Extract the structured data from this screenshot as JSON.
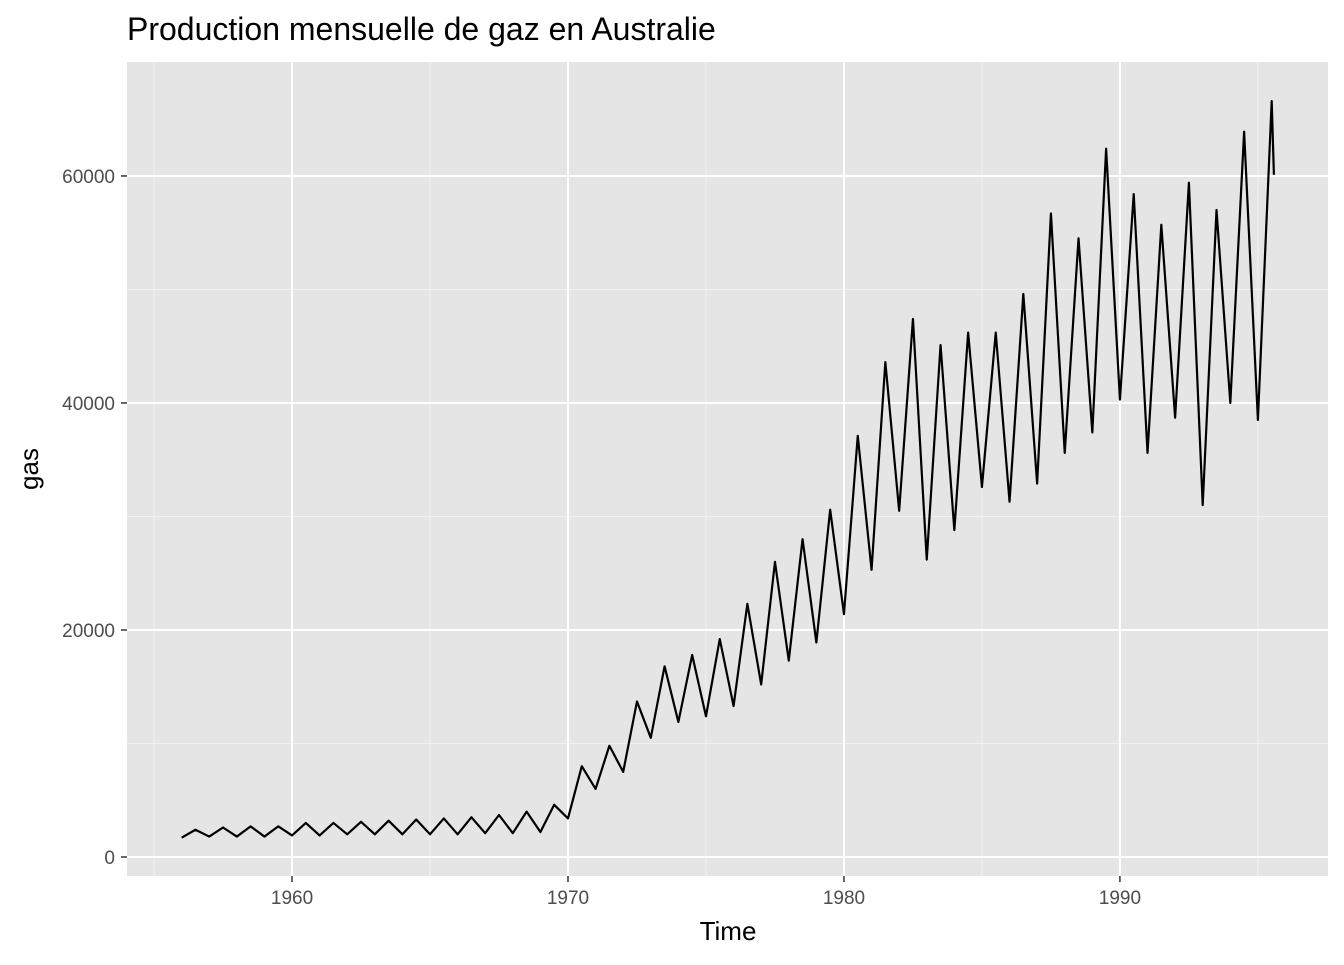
{
  "chart_data": {
    "type": "line",
    "title": "Production mensuelle de gaz en Australie",
    "x_label": "Time",
    "y_label": "gas",
    "color": "#000000",
    "grid": true,
    "x": [
      1956.0,
      1956.5,
      1957.0,
      1957.5,
      1958.0,
      1958.5,
      1959.0,
      1959.5,
      1960.0,
      1960.5,
      1961.0,
      1961.5,
      1962.0,
      1962.5,
      1963.0,
      1963.5,
      1964.0,
      1964.5,
      1965.0,
      1965.5,
      1966.0,
      1966.5,
      1967.0,
      1967.5,
      1968.0,
      1968.5,
      1969.0,
      1969.5,
      1970.0,
      1970.5,
      1971.0,
      1971.5,
      1972.0,
      1972.5,
      1973.0,
      1973.5,
      1974.0,
      1974.5,
      1975.0,
      1975.5,
      1976.0,
      1976.5,
      1977.0,
      1977.5,
      1978.0,
      1978.5,
      1979.0,
      1979.5,
      1980.0,
      1980.5,
      1981.0,
      1981.5,
      1982.0,
      1982.5,
      1983.0,
      1983.5,
      1984.0,
      1984.5,
      1985.0,
      1985.5,
      1986.0,
      1986.5,
      1987.0,
      1987.5,
      1988.0,
      1988.5,
      1989.0,
      1989.5,
      1990.0,
      1990.5,
      1991.0,
      1991.5,
      1992.0,
      1992.5,
      1993.0,
      1993.5,
      1994.0,
      1994.5,
      1995.0,
      1995.5,
      1995.58
    ],
    "values": [
      1700,
      2400,
      1800,
      2600,
      1800,
      2700,
      1800,
      2700,
      1900,
      3000,
      1900,
      3000,
      2000,
      3100,
      2000,
      3200,
      2000,
      3300,
      2000,
      3400,
      2000,
      3500,
      2100,
      3700,
      2100,
      4000,
      2200,
      4600,
      3400,
      8000,
      6000,
      9800,
      7500,
      13700,
      10500,
      16800,
      11900,
      17800,
      12400,
      19200,
      13300,
      22300,
      15200,
      26000,
      17300,
      28000,
      18900,
      30600,
      21400,
      37100,
      25300,
      43600,
      30500,
      47400,
      26200,
      45100,
      28800,
      46200,
      32600,
      46200,
      31300,
      49600,
      32900,
      56700,
      35600,
      54500,
      37400,
      62400,
      40300,
      58400,
      35600,
      55700,
      38700,
      59400,
      31000,
      57000,
      40000,
      63900,
      38500,
      66600,
      60100
    ],
    "xlim": [
      1954.02,
      1997.54
    ],
    "ylim": [
      -1674,
      70040
    ],
    "xticks": [
      1960,
      1970,
      1980,
      1990
    ],
    "yticks": [
      0,
      20000,
      40000,
      60000
    ],
    "x_minor_grid": [
      1955,
      1965,
      1975,
      1985,
      1995
    ],
    "y_minor_grid": [
      10000,
      30000,
      50000
    ]
  }
}
